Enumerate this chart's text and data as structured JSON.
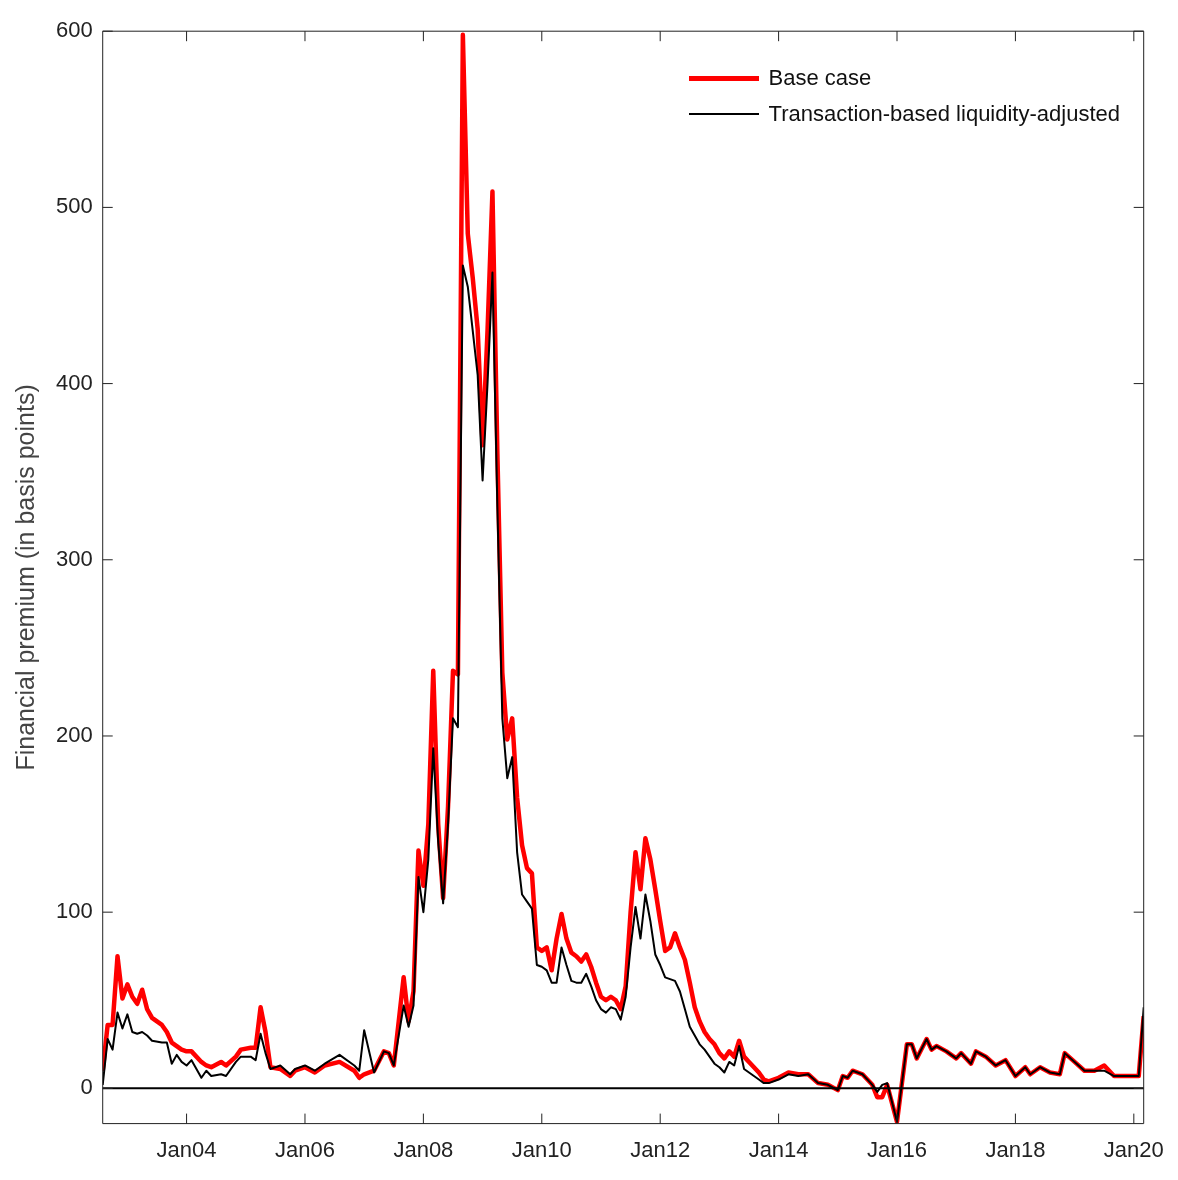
{
  "chart_data": {
    "type": "line",
    "ylabel": "Financial premium (in basis points)",
    "x": [
      "2002-08",
      "2002-09",
      "2002-10",
      "2002-11",
      "2002-12",
      "2003-01",
      "2003-02",
      "2003-03",
      "2003-04",
      "2003-05",
      "2003-06",
      "2003-08",
      "2003-09",
      "2003-10",
      "2003-11",
      "2003-12",
      "2004-01",
      "2004-02",
      "2004-04",
      "2004-05",
      "2004-06",
      "2004-08",
      "2004-09",
      "2004-11",
      "2004-12",
      "2005-02",
      "2005-03",
      "2005-04",
      "2005-05",
      "2005-06",
      "2005-08",
      "2005-10",
      "2005-11",
      "2006-01",
      "2006-03",
      "2006-05",
      "2006-08",
      "2006-11",
      "2006-12",
      "2007-01",
      "2007-03",
      "2007-05",
      "2007-06",
      "2007-07",
      "2007-09",
      "2007-10",
      "2007-11",
      "2007-12",
      "2008-01",
      "2008-02",
      "2008-03",
      "2008-04",
      "2008-05",
      "2008-06",
      "2008-07",
      "2008-08",
      "2008-09",
      "2008-10",
      "2008-11",
      "2008-12",
      "2009-01",
      "2009-02",
      "2009-03",
      "2009-04",
      "2009-05",
      "2009-06",
      "2009-07",
      "2009-08",
      "2009-09",
      "2009-10",
      "2009-11",
      "2009-12",
      "2010-01",
      "2010-02",
      "2010-03",
      "2010-04",
      "2010-05",
      "2010-06",
      "2010-07",
      "2010-08",
      "2010-09",
      "2010-10",
      "2010-11",
      "2010-12",
      "2011-01",
      "2011-02",
      "2011-03",
      "2011-04",
      "2011-05",
      "2011-06",
      "2011-07",
      "2011-08",
      "2011-09",
      "2011-10",
      "2011-11",
      "2011-12",
      "2012-01",
      "2012-02",
      "2012-03",
      "2012-04",
      "2012-05",
      "2012-06",
      "2012-07",
      "2012-08",
      "2012-09",
      "2012-10",
      "2012-11",
      "2012-12",
      "2013-01",
      "2013-02",
      "2013-03",
      "2013-04",
      "2013-05",
      "2013-06",
      "2013-07",
      "2013-08",
      "2013-09",
      "2013-10",
      "2013-11",
      "2014-01",
      "2014-03",
      "2014-05",
      "2014-07",
      "2014-09",
      "2014-11",
      "2015-01",
      "2015-02",
      "2015-03",
      "2015-04",
      "2015-06",
      "2015-08",
      "2015-09",
      "2015-10",
      "2015-11",
      "2016-01",
      "2016-03",
      "2016-04",
      "2016-05",
      "2016-07",
      "2016-08",
      "2016-09",
      "2016-11",
      "2017-01",
      "2017-02",
      "2017-04",
      "2017-05",
      "2017-07",
      "2017-09",
      "2017-11",
      "2018-01",
      "2018-03",
      "2018-04",
      "2018-06",
      "2018-08",
      "2018-10",
      "2018-11",
      "2019-01",
      "2019-03",
      "2019-05",
      "2019-07",
      "2019-09",
      "2019-11",
      "2020-02",
      "2020-03"
    ],
    "series": [
      {
        "name": "Base case",
        "color": "#ff0000",
        "values": [
          10,
          36,
          36,
          75,
          51,
          59,
          52,
          48,
          56,
          45,
          40,
          36,
          32,
          26,
          24,
          22,
          21,
          21,
          15,
          13,
          12,
          15,
          13,
          18,
          22,
          23,
          23,
          46,
          32,
          12,
          11,
          7,
          10,
          12,
          9,
          13,
          15,
          10,
          6,
          8,
          10,
          21,
          20,
          13,
          63,
          38,
          55,
          135,
          115,
          150,
          237,
          150,
          108,
          160,
          237,
          235,
          598,
          485,
          460,
          431,
          365,
          430,
          509,
          360,
          236,
          198,
          210,
          165,
          138,
          125,
          122,
          80,
          78,
          80,
          67,
          85,
          99,
          85,
          77,
          75,
          72,
          76,
          69,
          60,
          52,
          50,
          52,
          50,
          45,
          58,
          100,
          134,
          113,
          142,
          130,
          113,
          95,
          78,
          80,
          88,
          80,
          73,
          60,
          46,
          38,
          32,
          28,
          25,
          20,
          17,
          21,
          18,
          27,
          18,
          15,
          12,
          9,
          5,
          4,
          6,
          9,
          8,
          8,
          3,
          2,
          -1,
          7,
          6,
          10,
          8,
          2,
          -5,
          -5,
          2,
          -19,
          25,
          25,
          17,
          28,
          22,
          24,
          21,
          17,
          20,
          14,
          21,
          18,
          13,
          16,
          7,
          12,
          8,
          12,
          9,
          8,
          20,
          15,
          10,
          10,
          13,
          7,
          7,
          7,
          41
        ]
      },
      {
        "name": "Transaction-based liquidity-adjusted",
        "color": "#000000",
        "values": [
          2,
          28,
          22,
          43,
          34,
          42,
          32,
          31,
          32,
          30,
          27,
          26,
          26,
          14,
          19,
          15,
          13,
          16,
          6,
          10,
          7,
          8,
          7,
          15,
          18,
          18,
          16,
          31,
          20,
          11,
          13,
          8,
          11,
          13,
          10,
          14,
          19,
          13,
          10,
          33,
          9,
          21,
          20,
          13,
          47,
          35,
          47,
          120,
          100,
          130,
          193,
          140,
          105,
          150,
          210,
          205,
          467,
          455,
          430,
          405,
          345,
          400,
          463,
          330,
          210,
          176,
          188,
          134,
          110,
          106,
          102,
          70,
          69,
          67,
          60,
          60,
          80,
          70,
          61,
          60,
          60,
          65,
          58,
          50,
          45,
          43,
          46,
          45,
          39,
          52,
          80,
          103,
          85,
          110,
          95,
          76,
          70,
          63,
          62,
          61,
          55,
          45,
          35,
          30,
          25,
          22,
          18,
          14,
          12,
          9,
          15,
          13,
          24,
          11,
          9,
          7,
          5,
          3,
          3,
          5,
          8,
          7,
          8,
          3,
          2,
          -1,
          7,
          6,
          10,
          8,
          2,
          -2,
          2,
          3,
          -19,
          25,
          25,
          17,
          28,
          22,
          24,
          21,
          17,
          20,
          14,
          21,
          18,
          13,
          16,
          7,
          12,
          8,
          12,
          9,
          8,
          20,
          15,
          10,
          10,
          10,
          7,
          7,
          7,
          46
        ]
      }
    ],
    "xlim": [
      "2002-08",
      "2020-03"
    ],
    "xticks": [
      {
        "value": "2004-01",
        "label": "Jan04"
      },
      {
        "value": "2006-01",
        "label": "Jan06"
      },
      {
        "value": "2008-01",
        "label": "Jan08"
      },
      {
        "value": "2010-01",
        "label": "Jan10"
      },
      {
        "value": "2012-01",
        "label": "Jan12"
      },
      {
        "value": "2014-01",
        "label": "Jan14"
      },
      {
        "value": "2016-01",
        "label": "Jan16"
      },
      {
        "value": "2018-01",
        "label": "Jan18"
      },
      {
        "value": "2020-01",
        "label": "Jan20"
      }
    ],
    "ylim": [
      -20,
      600
    ],
    "yticks": [
      0,
      100,
      200,
      300,
      400,
      500,
      600
    ],
    "ref_lines": [
      {
        "axis": "y",
        "value": 0,
        "color": "#000000"
      }
    ],
    "grid": false,
    "legend": "top right",
    "marker": "none",
    "line_style": "solid"
  }
}
